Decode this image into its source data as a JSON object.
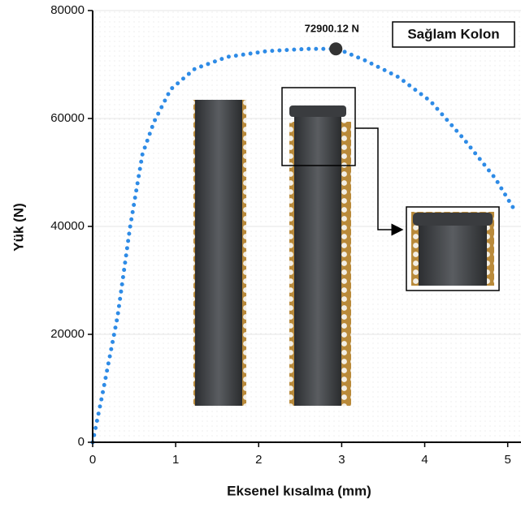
{
  "chart_data": {
    "type": "line",
    "x_label": "Eksenel kısalma (mm)",
    "y_label": "Yük (N)",
    "legend_label": "Sağlam Kolon",
    "x": [
      0,
      0.11,
      0.3,
      0.45,
      0.6,
      0.74,
      0.94,
      1.23,
      1.62,
      2.11,
      2.6,
      2.95,
      3.29,
      3.68,
      4.07,
      4.46,
      4.85,
      5.1
    ],
    "series": [
      {
        "name": "Sağlam Kolon",
        "color": "#2e8be6",
        "values": [
          0,
          8300,
          23300,
          39800,
          53400,
          59400,
          65400,
          69200,
          71400,
          72500,
          72900,
          72900,
          70700,
          67700,
          63200,
          56400,
          48900,
          42600
        ]
      }
    ],
    "peak": {
      "x": 2.93,
      "y": 72900.12,
      "label": "72900.12 N",
      "color": "#333333"
    },
    "xlim": [
      0,
      5.16
    ],
    "ylim": [
      0,
      80000
    ],
    "xticks": [
      0,
      1,
      2,
      3,
      4,
      5
    ],
    "yticks": [
      0,
      20000,
      40000,
      60000,
      80000
    ],
    "grid": true
  }
}
